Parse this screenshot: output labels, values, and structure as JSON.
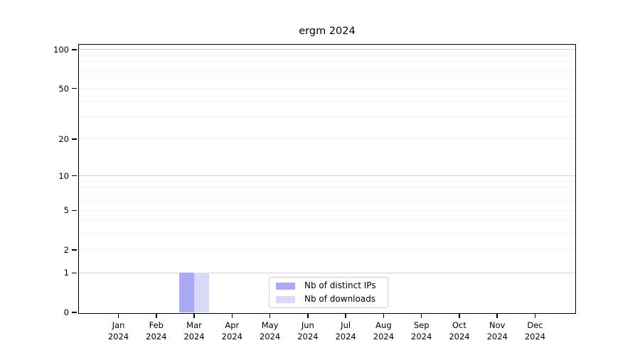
{
  "figure": {
    "background": "#ffffff",
    "axis_color": "#000000",
    "text_color": "#000000"
  },
  "chart_data": {
    "type": "bar",
    "title": "ergm 2024",
    "xlabel": "",
    "ylabel": "",
    "yscale": "log1p",
    "ylim": [
      0,
      109
    ],
    "yticks": [
      0,
      1,
      2,
      5,
      10,
      20,
      50,
      100
    ],
    "grid": {
      "major_lines": [
        1,
        10,
        100
      ],
      "minor_lines": [
        2,
        3,
        4,
        5,
        6,
        7,
        8,
        9,
        20,
        30,
        40,
        50,
        60,
        70,
        80,
        90
      ],
      "major_color": "#d2d2d2",
      "minor_color": "#f2f2f2"
    },
    "x_tick_labels": [
      {
        "month": "Jan",
        "year": "2024"
      },
      {
        "month": "Feb",
        "year": "2024"
      },
      {
        "month": "Mar",
        "year": "2024"
      },
      {
        "month": "Apr",
        "year": "2024"
      },
      {
        "month": "May",
        "year": "2024"
      },
      {
        "month": "Jun",
        "year": "2024"
      },
      {
        "month": "Jul",
        "year": "2024"
      },
      {
        "month": "Aug",
        "year": "2024"
      },
      {
        "month": "Sep",
        "year": "2024"
      },
      {
        "month": "Oct",
        "year": "2024"
      },
      {
        "month": "Nov",
        "year": "2024"
      },
      {
        "month": "Dec",
        "year": "2024"
      }
    ],
    "series": [
      {
        "name": "Nb of distinct IPs",
        "color": "#a9a9f5",
        "values": [
          0,
          0,
          1,
          0,
          0,
          0,
          0,
          0,
          0,
          0,
          0,
          0
        ]
      },
      {
        "name": "Nb of downloads",
        "color": "#dadaf8",
        "values": [
          0,
          0,
          1,
          0,
          0,
          0,
          0,
          0,
          0,
          0,
          0,
          0
        ]
      }
    ],
    "legend": {
      "position": "bottom-center"
    }
  }
}
